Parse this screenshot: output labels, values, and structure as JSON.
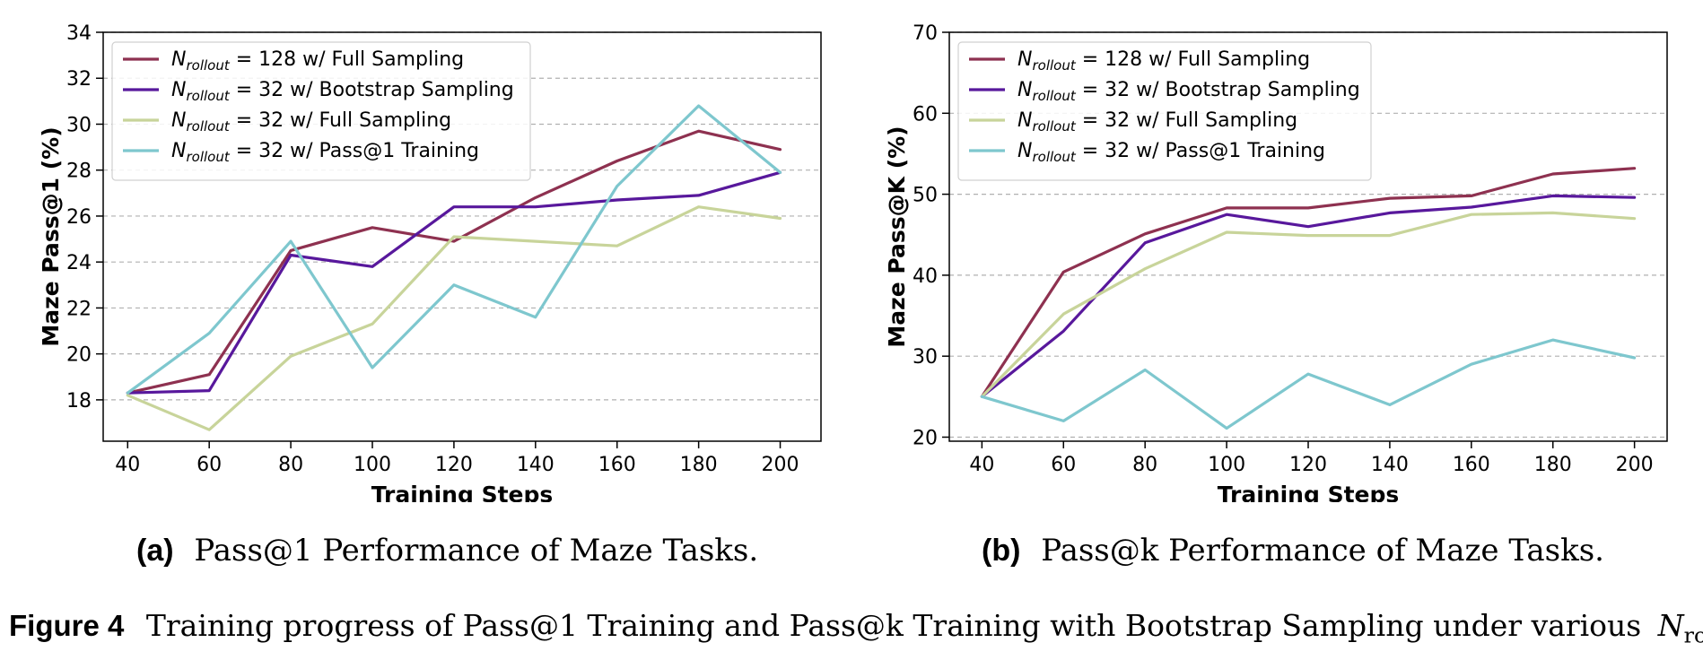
{
  "chart_data": [
    {
      "type": "line",
      "panel": "a",
      "xlabel": "Training Steps",
      "ylabel": "Maze Pass@1 (%)",
      "x": [
        40,
        60,
        80,
        100,
        120,
        140,
        160,
        180,
        200
      ],
      "xticks": [
        40,
        60,
        80,
        100,
        120,
        140,
        160,
        180,
        200
      ],
      "yticks": [
        18,
        20,
        22,
        24,
        26,
        28,
        30,
        32,
        34
      ],
      "xlim": [
        34,
        210
      ],
      "ylim": [
        16.2,
        34
      ],
      "grid": "horizontal dashed",
      "legend": "top-left",
      "series": [
        {
          "name_prefix": "N",
          "name_sub": "rollout",
          "name_suffix": " = 128 w/ Full Sampling",
          "color": "#8e3150",
          "values": [
            18.3,
            19.1,
            24.5,
            25.5,
            24.9,
            26.8,
            28.4,
            29.7,
            28.9
          ]
        },
        {
          "name_prefix": "N",
          "name_sub": "rollout",
          "name_suffix": " = 32 w/ Bootstrap Sampling",
          "color": "#58189c",
          "values": [
            18.3,
            18.4,
            24.3,
            23.8,
            26.4,
            26.4,
            26.7,
            26.9,
            27.9
          ]
        },
        {
          "name_prefix": "N",
          "name_sub": "rollout",
          "name_suffix": " = 32 w/ Full Sampling",
          "color": "#c8d49a",
          "values": [
            18.2,
            16.7,
            19.9,
            21.3,
            25.1,
            24.9,
            24.7,
            26.4,
            25.9
          ]
        },
        {
          "name_prefix": "N",
          "name_sub": "rollout",
          "name_suffix": " = 32 w/ Pass@1 Training",
          "color": "#7ec7ce",
          "values": [
            18.3,
            20.9,
            24.9,
            19.4,
            23.0,
            21.6,
            27.3,
            30.8,
            27.9
          ]
        }
      ]
    },
    {
      "type": "line",
      "panel": "b",
      "xlabel": "Training Steps",
      "ylabel": "Maze Pass@K (%)",
      "x": [
        40,
        60,
        80,
        100,
        120,
        140,
        160,
        180,
        200
      ],
      "xticks": [
        40,
        60,
        80,
        100,
        120,
        140,
        160,
        180,
        200
      ],
      "yticks": [
        20,
        30,
        40,
        50,
        60,
        70
      ],
      "xlim": [
        32,
        208
      ],
      "ylim": [
        19.5,
        70
      ],
      "grid": "horizontal dashed",
      "legend": "top-left",
      "series": [
        {
          "name_prefix": "N",
          "name_sub": "rollout",
          "name_suffix": " = 128 w/ Full Sampling",
          "color": "#8e3150",
          "values": [
            25.0,
            40.4,
            45.1,
            48.3,
            48.3,
            49.5,
            49.8,
            52.5,
            53.2
          ]
        },
        {
          "name_prefix": "N",
          "name_sub": "rollout",
          "name_suffix": " = 32 w/ Bootstrap Sampling",
          "color": "#58189c",
          "values": [
            25.0,
            33.1,
            44.0,
            47.5,
            46.0,
            47.7,
            48.4,
            49.8,
            49.6
          ]
        },
        {
          "name_prefix": "N",
          "name_sub": "rollout",
          "name_suffix": " = 32 w/ Full Sampling",
          "color": "#c8d49a",
          "values": [
            25.0,
            35.2,
            40.8,
            45.3,
            44.9,
            44.9,
            47.5,
            47.7,
            47.0
          ]
        },
        {
          "name_prefix": "N",
          "name_sub": "rollout",
          "name_suffix": " = 32 w/ Pass@1 Training",
          "color": "#7ec7ce",
          "values": [
            25.0,
            22.0,
            28.3,
            21.1,
            27.8,
            24.0,
            29.0,
            32.0,
            29.8
          ]
        }
      ]
    }
  ],
  "subcaptions": [
    {
      "tag": "(a)",
      "text": "Pass@1 Performance of Maze Tasks."
    },
    {
      "tag": "(b)",
      "text": "Pass@k Performance of Maze Tasks."
    }
  ],
  "figure_caption": {
    "tag": "Figure 4",
    "text": "Training progress of Pass@1 Training and Pass@k Training with Bootstrap Sampling under various",
    "symbol": "N",
    "symbol_sub": "rollout",
    "end": "."
  }
}
